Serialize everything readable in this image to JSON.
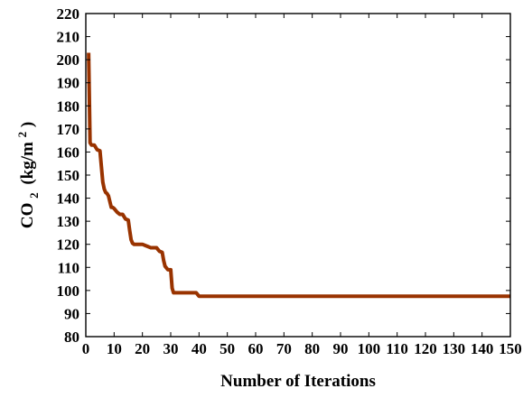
{
  "chart_data": {
    "type": "line",
    "xlabel": "Number of Iterations",
    "ylabel": "CO",
    "ylabel_subscript": "2",
    "ylabel_unit_start": "(kg/m",
    "ylabel_unit_superscript": "2",
    "ylabel_unit_end": ")",
    "xlim": [
      0,
      150
    ],
    "ylim": [
      80,
      220
    ],
    "xticks": [
      0,
      10,
      20,
      30,
      40,
      50,
      60,
      70,
      80,
      90,
      100,
      110,
      120,
      130,
      140,
      150
    ],
    "yticks": [
      80,
      90,
      100,
      110,
      120,
      130,
      140,
      150,
      160,
      170,
      180,
      190,
      200,
      210,
      220
    ],
    "grid": false,
    "line_color": "#993300",
    "series": [
      {
        "x": [
          1,
          1.5,
          2,
          3,
          4,
          5,
          6,
          6.5,
          7,
          7.5,
          8,
          9,
          9.5,
          10,
          11,
          12,
          13,
          14,
          15,
          15.5,
          16,
          16.5,
          17,
          18,
          19,
          20,
          21,
          22,
          23,
          24,
          25,
          26,
          27,
          27.5,
          28,
          29,
          30,
          30.5,
          31,
          32,
          33,
          35,
          38,
          39,
          40,
          42,
          45,
          50,
          60,
          80,
          100,
          120,
          140,
          150
        ],
        "y": [
          203,
          164,
          163,
          163,
          161,
          160.5,
          147,
          144,
          142.5,
          142,
          141,
          136,
          136,
          135.5,
          134,
          133,
          133,
          131,
          130.5,
          126,
          122,
          120.5,
          120,
          120,
          120,
          120,
          119.5,
          119,
          118.5,
          118.5,
          118.5,
          117,
          116.5,
          113,
          110.5,
          109,
          109,
          101,
          99,
          99,
          99,
          99,
          99,
          99,
          97.5,
          97.5,
          97.5,
          97.5,
          97.5,
          97.5,
          97.5,
          97.5,
          97.5,
          97.5
        ]
      }
    ]
  }
}
